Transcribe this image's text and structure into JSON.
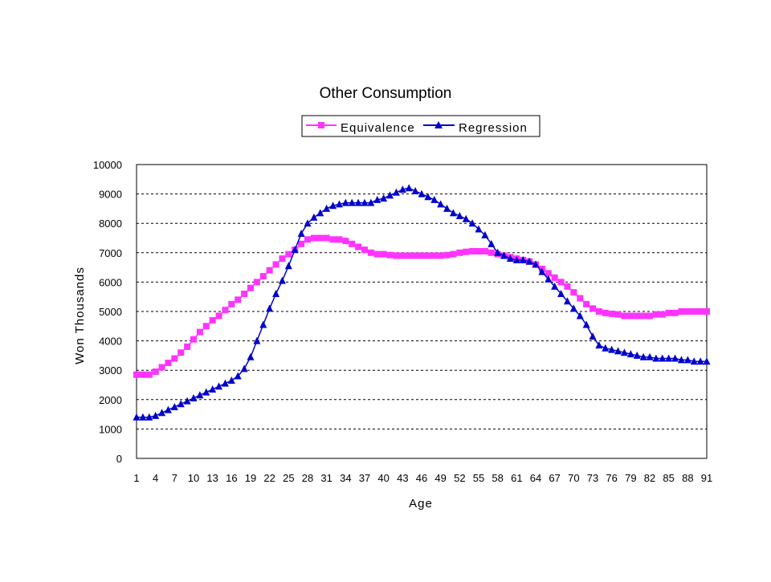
{
  "chart_data": {
    "type": "line",
    "title": "Other Consumption",
    "xlabel": "Age",
    "ylabel": "Won Thousands",
    "ylim": [
      0,
      10000
    ],
    "yticks": [
      0,
      1000,
      2000,
      3000,
      4000,
      5000,
      6000,
      7000,
      8000,
      9000,
      10000
    ],
    "xticks": [
      1,
      4,
      7,
      10,
      13,
      16,
      19,
      22,
      25,
      28,
      31,
      34,
      37,
      40,
      43,
      46,
      49,
      52,
      55,
      58,
      61,
      64,
      67,
      70,
      73,
      76,
      79,
      82,
      85,
      88,
      91
    ],
    "grid": "horizontal-dashed",
    "legend_position": "top-center",
    "x": [
      1,
      2,
      3,
      4,
      5,
      6,
      7,
      8,
      9,
      10,
      11,
      12,
      13,
      14,
      15,
      16,
      17,
      18,
      19,
      20,
      21,
      22,
      23,
      24,
      25,
      26,
      27,
      28,
      29,
      30,
      31,
      32,
      33,
      34,
      35,
      36,
      37,
      38,
      39,
      40,
      41,
      42,
      43,
      44,
      45,
      46,
      47,
      48,
      49,
      50,
      51,
      52,
      53,
      54,
      55,
      56,
      57,
      58,
      59,
      60,
      61,
      62,
      63,
      64,
      65,
      66,
      67,
      68,
      69,
      70,
      71,
      72,
      73,
      74,
      75,
      76,
      77,
      78,
      79,
      80,
      81,
      82,
      83,
      84,
      85,
      86,
      87,
      88,
      89,
      90,
      91
    ],
    "series": [
      {
        "name": "Equivalence",
        "color": "#FF33FF",
        "marker": "square",
        "values": [
          2850,
          2850,
          2850,
          2950,
          3100,
          3250,
          3400,
          3600,
          3800,
          4050,
          4300,
          4500,
          4700,
          4850,
          5050,
          5250,
          5400,
          5600,
          5800,
          6000,
          6200,
          6400,
          6600,
          6800,
          6950,
          7100,
          7300,
          7450,
          7500,
          7500,
          7500,
          7450,
          7450,
          7400,
          7300,
          7200,
          7100,
          7000,
          6950,
          6950,
          6920,
          6900,
          6900,
          6900,
          6900,
          6900,
          6900,
          6900,
          6900,
          6920,
          6950,
          7000,
          7030,
          7050,
          7050,
          7050,
          7000,
          6950,
          6900,
          6850,
          6800,
          6750,
          6700,
          6600,
          6450,
          6300,
          6150,
          6000,
          5850,
          5650,
          5450,
          5250,
          5100,
          5000,
          4950,
          4920,
          4900,
          4850,
          4850,
          4850,
          4850,
          4850,
          4900,
          4900,
          4950,
          4950,
          5000,
          5000,
          5000,
          5000,
          5000
        ]
      },
      {
        "name": "Regression",
        "color": "#0000CC",
        "marker": "triangle",
        "values": [
          1400,
          1400,
          1400,
          1450,
          1550,
          1650,
          1750,
          1850,
          1950,
          2050,
          2150,
          2250,
          2350,
          2450,
          2550,
          2650,
          2800,
          3050,
          3450,
          4000,
          4550,
          5100,
          5600,
          6050,
          6550,
          7100,
          7650,
          8000,
          8200,
          8350,
          8500,
          8600,
          8650,
          8700,
          8700,
          8700,
          8700,
          8700,
          8800,
          8850,
          8950,
          9050,
          9150,
          9200,
          9100,
          9000,
          8900,
          8800,
          8650,
          8500,
          8350,
          8250,
          8150,
          8000,
          7800,
          7600,
          7300,
          7000,
          6900,
          6800,
          6750,
          6750,
          6700,
          6600,
          6350,
          6100,
          5850,
          5600,
          5350,
          5100,
          4850,
          4550,
          4150,
          3850,
          3750,
          3700,
          3650,
          3600,
          3550,
          3500,
          3450,
          3450,
          3400,
          3400,
          3400,
          3400,
          3350,
          3350,
          3300,
          3300,
          3300
        ]
      }
    ]
  }
}
